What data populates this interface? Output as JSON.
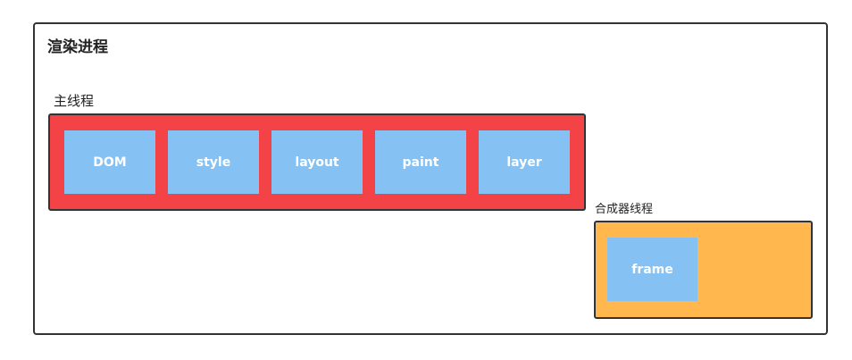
{
  "renderer_process": {
    "title": "渲染进程"
  },
  "main_thread": {
    "label": "主线程",
    "steps": [
      "DOM",
      "style",
      "layout",
      "paint",
      "layer"
    ],
    "color": "#f44347"
  },
  "compositor_thread": {
    "label": "合成器线程",
    "block": "frame",
    "color": "#ffb74e"
  },
  "block_color": "#85c1f2"
}
